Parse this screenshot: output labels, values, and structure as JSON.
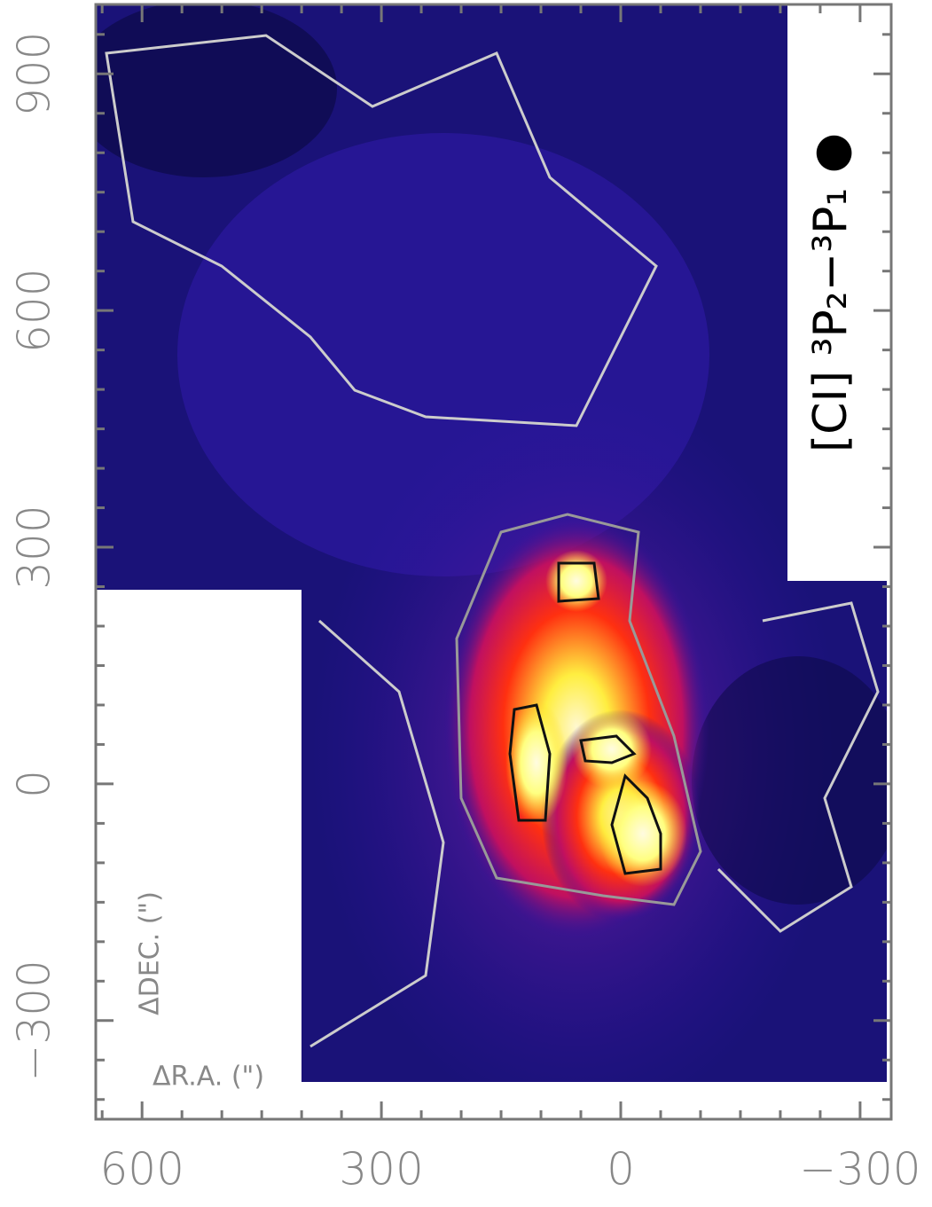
{
  "chart_data": {
    "type": "image-map",
    "line_label": "[CI] ³P₂−³P₁ ●",
    "xlabel": "ΔR.A. (\")",
    "ylabel": "ΔDEC. (\")",
    "xlim": [
      658,
      -339
    ],
    "ylim": [
      -425,
      988
    ],
    "xticks": [
      600,
      300,
      0,
      {
        "value": -300,
        "label": "−300"
      }
    ],
    "yticks": [
      {
        "value": -300,
        "label": "−300"
      },
      0,
      300,
      600,
      900
    ],
    "xminorticks": [
      650,
      550,
      500,
      450,
      400,
      350,
      250,
      200,
      150,
      100,
      50,
      -50,
      -100,
      -150,
      -200,
      -250
    ],
    "yminorticks": [
      950,
      850,
      800,
      750,
      700,
      650,
      550,
      500,
      450,
      400,
      350,
      250,
      200,
      150,
      100,
      50,
      -50,
      -100,
      -150,
      -200,
      -250,
      -350,
      -400
    ]
  }
}
